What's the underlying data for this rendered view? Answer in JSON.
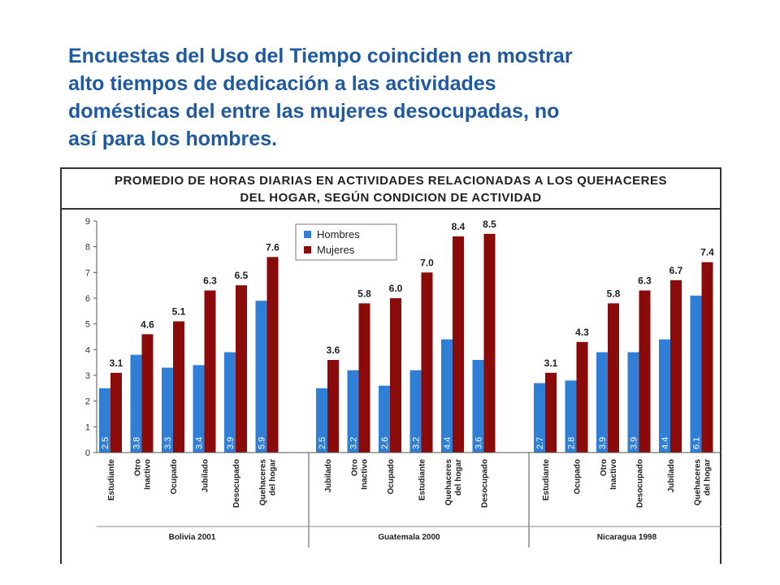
{
  "headline": [
    "Encuestas del Uso del Tiempo coinciden en mostrar",
    "alto tiempos de dedicación a las actividades",
    "domésticas del entre las mujeres desocupadas, no",
    "así para los hombres."
  ],
  "chart_data": {
    "type": "bar",
    "title": [
      "PROMEDIO DE HORAS DIARIAS EN ACTIVIDADES RELACIONADAS A LOS QUEHACERES",
      "DEL HOGAR, SEGÚN CONDICION DE ACTIVIDAD"
    ],
    "ylim": [
      0,
      9
    ],
    "yticks": [
      "0",
      "1",
      "2",
      "3",
      "4",
      "5",
      "6",
      "7",
      "8",
      "9"
    ],
    "legend": {
      "placement": "top-center",
      "entries": [
        "Hombres",
        "Mujeres"
      ]
    },
    "colors": {
      "Hombres": "#2f7fd6",
      "Mujeres": "#8b0a0a"
    },
    "grid": false,
    "groups": [
      {
        "name": "Bolivia 2001",
        "categories": [
          [
            "Estudiante"
          ],
          [
            "Otro",
            "Inactivo"
          ],
          [
            "Ocupado"
          ],
          [
            "Jubilado"
          ],
          [
            "Desocupado"
          ],
          [
            "Quehaceres",
            "del hogar"
          ]
        ],
        "hombres": [
          2.5,
          3.8,
          3.3,
          3.4,
          3.9,
          5.9
        ],
        "mujeres": [
          3.1,
          4.6,
          5.1,
          6.3,
          6.5,
          7.6
        ],
        "hombres_labels": [
          "2.5",
          "3.8",
          "3.3",
          "3.4",
          "3.9",
          "5.9"
        ],
        "mujeres_labels": [
          "3.1",
          "4.6",
          "5.1",
          "6.3",
          "6.5",
          "7.6"
        ]
      },
      {
        "name": "Guatemala 2000",
        "categories": [
          [
            "Jubilado"
          ],
          [
            "Otro",
            "Inactivo"
          ],
          [
            "Ocupado"
          ],
          [
            "Estudiante"
          ],
          [
            "Quehaceres",
            "del hogar"
          ],
          [
            "Desocupado"
          ]
        ],
        "hombres": [
          2.5,
          3.2,
          2.6,
          3.2,
          4.4,
          3.6
        ],
        "mujeres": [
          3.6,
          5.8,
          6.0,
          7.0,
          8.4,
          8.5
        ],
        "hombres_labels": [
          "2.5",
          "3.2",
          "2.6",
          "3.2",
          "4.4",
          "3.6"
        ],
        "mujeres_labels": [
          "3.6",
          "5.8",
          "6.0",
          "7.0",
          "8.4",
          "8.5"
        ]
      },
      {
        "name": "Nicaragua 1998",
        "categories": [
          [
            "Estudiante"
          ],
          [
            "Ocupado"
          ],
          [
            "Otro",
            "Inactivo"
          ],
          [
            "Desocupado"
          ],
          [
            "Jubilado"
          ],
          [
            "Quehaceres",
            "del hogar"
          ]
        ],
        "hombres": [
          2.7,
          2.8,
          3.9,
          3.9,
          4.4,
          6.1
        ],
        "mujeres": [
          3.1,
          4.3,
          5.8,
          6.3,
          6.7,
          7.4
        ],
        "hombres_labels": [
          "2.7",
          "2.8",
          "3.9",
          "3.9",
          "4.4",
          "6.1"
        ],
        "mujeres_labels": [
          "3.1",
          "4.3",
          "5.8",
          "6.3",
          "6.7",
          "7.4"
        ]
      }
    ]
  }
}
